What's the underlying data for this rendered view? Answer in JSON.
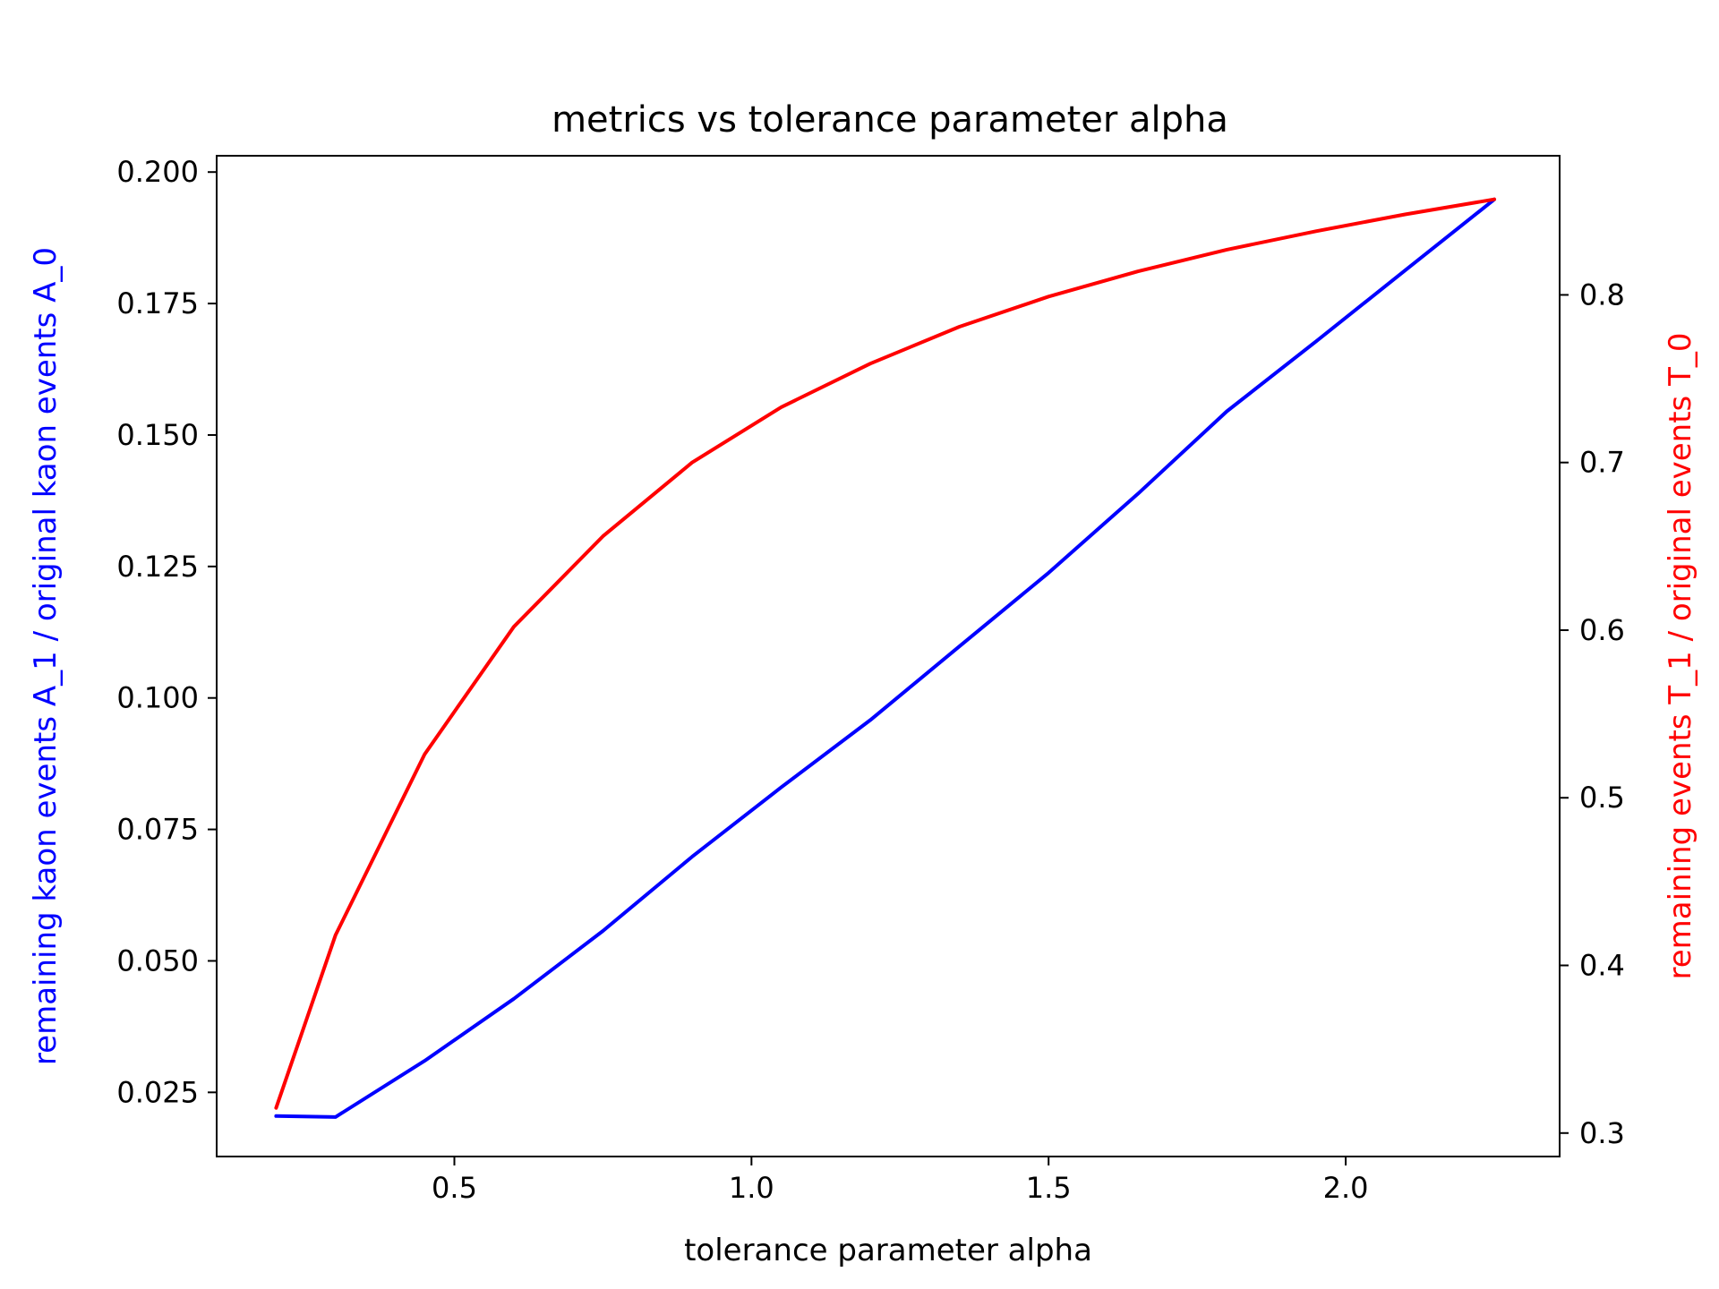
{
  "chart_data": {
    "type": "line",
    "title": "metrics vs tolerance parameter alpha",
    "xlabel": "tolerance parameter alpha",
    "ylabel_left": "remaining kaon events A_1 / original kaon events A_0",
    "ylabel_right": "remaining events T_1 / original events T_0",
    "xlim": [
      0.1,
      2.36
    ],
    "ylim_left": [
      0.0128,
      0.2031
    ],
    "ylim_right": [
      0.286,
      0.883
    ],
    "x_ticks": [
      "0.5",
      "1.0",
      "1.5",
      "2.0"
    ],
    "y_left_ticks": [
      "0.025",
      "0.050",
      "0.075",
      "0.100",
      "0.125",
      "0.150",
      "0.175",
      "0.200"
    ],
    "y_right_ticks": [
      "0.3",
      "0.4",
      "0.5",
      "0.6",
      "0.7",
      "0.8"
    ],
    "grid": false,
    "colors": {
      "left_axis": "#0000ff",
      "right_axis": "#ff0000",
      "axes": "#000000"
    },
    "series": [
      {
        "axis": "left",
        "color": "#0000ff",
        "x": [
          0.2,
          0.3,
          0.45,
          0.6,
          0.75,
          0.9,
          1.05,
          1.2,
          1.35,
          1.5,
          1.65,
          1.8,
          1.95,
          2.1,
          2.25
        ],
        "y": [
          0.0205,
          0.0203,
          0.031,
          0.0428,
          0.0557,
          0.0698,
          0.083,
          0.0958,
          0.1098,
          0.1238,
          0.1388,
          0.1545,
          0.1678,
          0.1813,
          0.1948
        ]
      },
      {
        "axis": "right",
        "color": "#ff0000",
        "x": [
          0.2,
          0.3,
          0.45,
          0.6,
          0.75,
          0.9,
          1.05,
          1.2,
          1.35,
          1.5,
          1.65,
          1.8,
          1.95,
          2.1,
          2.25
        ],
        "y": [
          0.315,
          0.418,
          0.526,
          0.602,
          0.656,
          0.7,
          0.733,
          0.759,
          0.781,
          0.799,
          0.814,
          0.827,
          0.838,
          0.848,
          0.857
        ]
      }
    ]
  }
}
